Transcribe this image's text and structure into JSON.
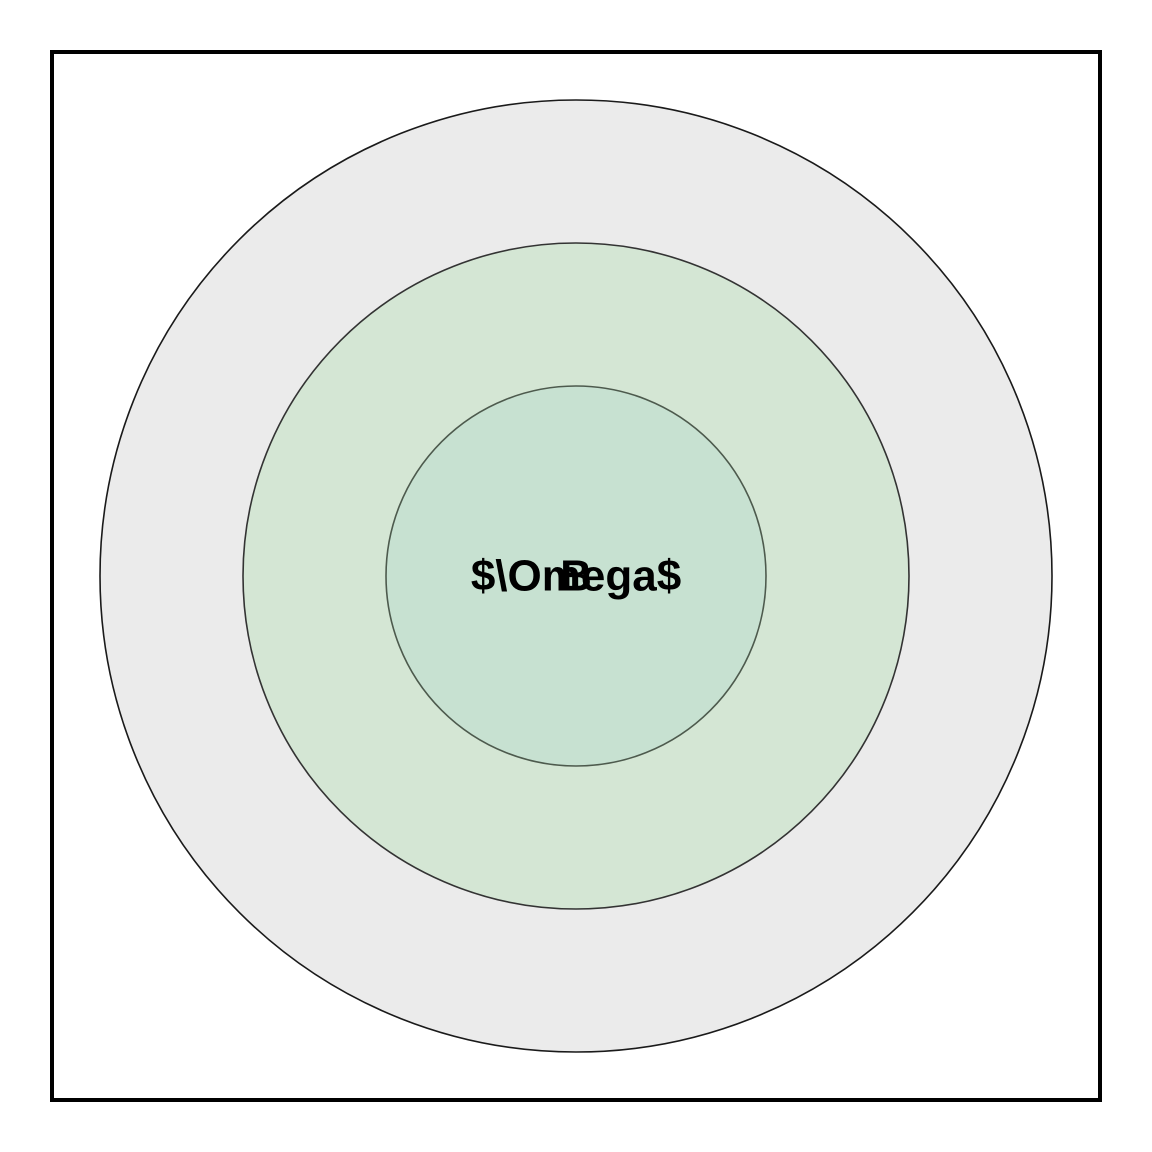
{
  "diagram": {
    "labels": {
      "center_main": "$\\Omega$",
      "center_overlap": "B"
    },
    "colors": {
      "background": "#ffffff",
      "frame_border": "#000000",
      "outer_ring_fill": "#ebebeb",
      "middle_ring_fill": "#d4e6d4",
      "inner_ring_fill": "#c7e1d1",
      "ring_stroke_outer": "#1a1a1a",
      "ring_stroke_middle": "#333333",
      "ring_stroke_inner": "#4d5a4d"
    }
  }
}
